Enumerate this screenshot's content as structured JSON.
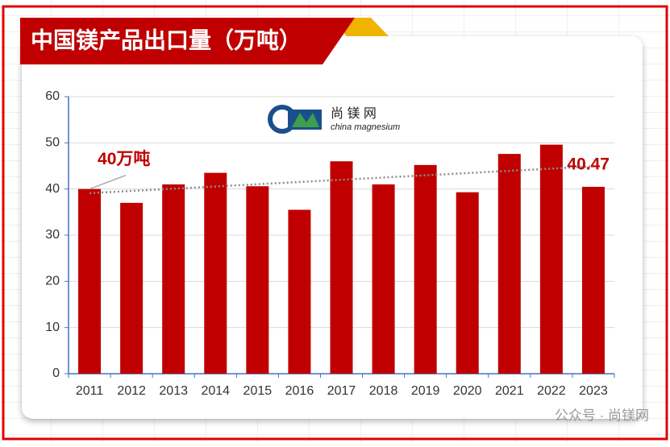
{
  "chart_data": {
    "type": "bar",
    "title": "中国镁产品出口量（万吨）",
    "categories": [
      "2011",
      "2012",
      "2013",
      "2014",
      "2015",
      "2016",
      "2017",
      "2018",
      "2019",
      "2020",
      "2021",
      "2022",
      "2023"
    ],
    "values": [
      40,
      37,
      41,
      43.5,
      40.6,
      35.5,
      46,
      41,
      45.2,
      39.3,
      47.6,
      49.6,
      40.47
    ],
    "value_labels": [
      "40万吨",
      null,
      null,
      null,
      null,
      null,
      null,
      null,
      null,
      null,
      null,
      null,
      "40.47"
    ],
    "color": "#c00000",
    "trendline": {
      "values": [
        39.1,
        44.9
      ],
      "color": "#8c8c8c"
    },
    "ylim": [
      0,
      60
    ],
    "yticks": [
      0,
      10,
      20,
      30,
      40,
      50,
      60
    ],
    "grid": true
  },
  "logo": {
    "name": "尚 镁 网",
    "subtitle": "china magnesium"
  },
  "watermark": "公众号 · 尚镁网"
}
